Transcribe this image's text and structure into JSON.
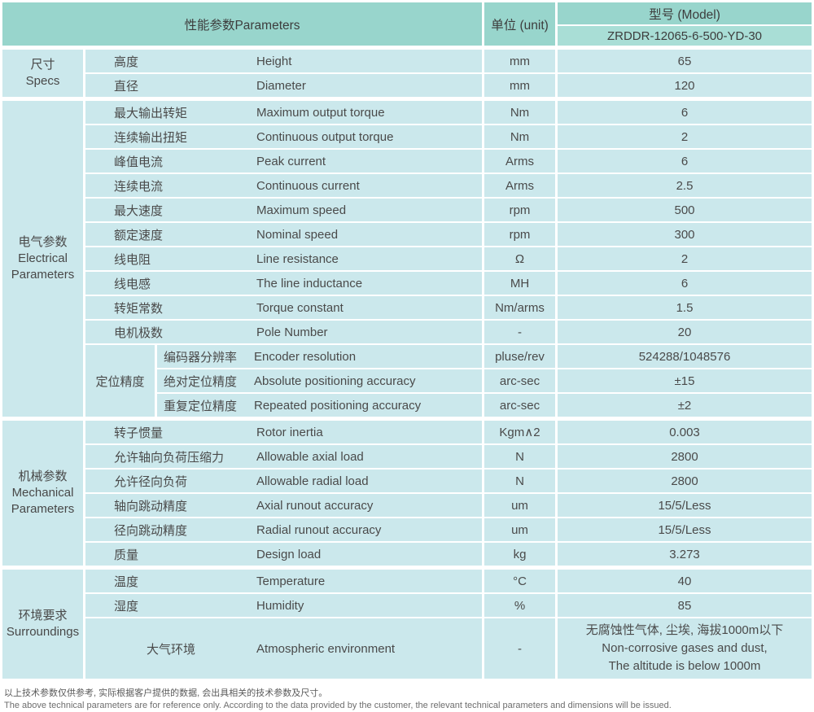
{
  "header": {
    "params_label": "性能参数Parameters",
    "unit_label": "单位 (unit)",
    "model_label": "型号 (Model)",
    "model_value": "ZRDDR-12065-6-500-YD-30"
  },
  "sections": [
    {
      "cat_zh": "尺寸",
      "cat_en": "Specs",
      "rows": [
        {
          "zh": "高度",
          "en": "Height",
          "unit": "mm",
          "value": "65"
        },
        {
          "zh": "直径",
          "en": "Diameter",
          "unit": "mm",
          "value": "120"
        }
      ]
    },
    {
      "cat_zh": "电气参数",
      "cat_en": "Electrical Parameters",
      "rows": [
        {
          "zh": "最大输出转矩",
          "en": "Maximum output torque",
          "unit": "Nm",
          "value": "6"
        },
        {
          "zh": "连续输出扭矩",
          "en": "Continuous output torque",
          "unit": "Nm",
          "value": "2"
        },
        {
          "zh": "峰值电流",
          "en": "Peak current",
          "unit": "Arms",
          "value": "6"
        },
        {
          "zh": "连续电流",
          "en": "Continuous current",
          "unit": "Arms",
          "value": "2.5"
        },
        {
          "zh": "最大速度",
          "en": "Maximum speed",
          "unit": "rpm",
          "value": "500"
        },
        {
          "zh": "额定速度",
          "en": "Nominal speed",
          "unit": "rpm",
          "value": "300"
        },
        {
          "zh": "线电阻",
          "en": "Line resistance",
          "unit": "Ω",
          "value": "2"
        },
        {
          "zh": "线电感",
          "en": "The line inductance",
          "unit": "MH",
          "value": "6"
        },
        {
          "zh": "转矩常数",
          "en": "Torque constant",
          "unit": "Nm/arms",
          "value": "1.5"
        },
        {
          "zh": "电机极数",
          "en": "Pole Number",
          "unit": "-",
          "value": "20"
        },
        {
          "subgroup_label": "定位精度",
          "subgroup_span": 3,
          "in_subgroup": true,
          "zh": "编码器分辨率",
          "en": "Encoder resolution",
          "unit": "pluse/rev",
          "value": "524288/1048576"
        },
        {
          "in_subgroup": true,
          "zh": "绝对定位精度",
          "en": "Absolute positioning accuracy",
          "unit": "arc-sec",
          "value": "±15"
        },
        {
          "in_subgroup": true,
          "zh": "重复定位精度",
          "en": "Repeated positioning accuracy",
          "unit": "arc-sec",
          "value": "±2"
        }
      ]
    },
    {
      "cat_zh": "机械参数",
      "cat_en": "Mechanical Parameters",
      "rows": [
        {
          "zh": "转子惯量",
          "en": "Rotor inertia",
          "unit": "Kgm∧2",
          "value": "0.003"
        },
        {
          "zh": "允许轴向负荷压缩力",
          "en": "Allowable axial load",
          "unit": "N",
          "value": "2800"
        },
        {
          "zh": "允许径向负荷",
          "en": "Allowable radial load",
          "unit": "N",
          "value": "2800"
        },
        {
          "zh": "轴向跳动精度",
          "en": "Axial runout accuracy",
          "unit": "um",
          "value": "15/5/Less"
        },
        {
          "zh": "径向跳动精度",
          "en": "Radial runout accuracy",
          "unit": "um",
          "value": "15/5/Less"
        },
        {
          "zh": "质量",
          "en": "Design load",
          "unit": "kg",
          "value": "3.273"
        }
      ]
    },
    {
      "cat_zh": "环境要求",
      "cat_en": "Surroundings",
      "rows": [
        {
          "zh": "温度",
          "en": "Temperature",
          "unit": "°C",
          "value": "40"
        },
        {
          "zh": "湿度",
          "en": "Humidity",
          "unit": "%",
          "value": "85"
        },
        {
          "zh": "大气环境",
          "en": "Atmospheric environment",
          "unit": "-",
          "center_zh": true,
          "value": [
            "无腐蚀性气体, 尘埃, 海拔1000m以下",
            "Non-corrosive gases and dust,",
            "The altitude is below 1000m"
          ]
        }
      ]
    }
  ],
  "notes": {
    "zh": "以上技术参数仅供参考, 实际根据客户提供的数据, 会出具相关的技术参数及尺寸。",
    "en": "The above technical parameters are for reference only. According to the data provided by the customer, the relevant technical parameters and dimensions will be issued."
  },
  "colors": {
    "header_teal": "#98d5cc",
    "model_row_teal": "#a9ded6",
    "body_cyan": "#cbe8ec",
    "gridline": "#ffffff",
    "text": "#4a4a4a"
  }
}
